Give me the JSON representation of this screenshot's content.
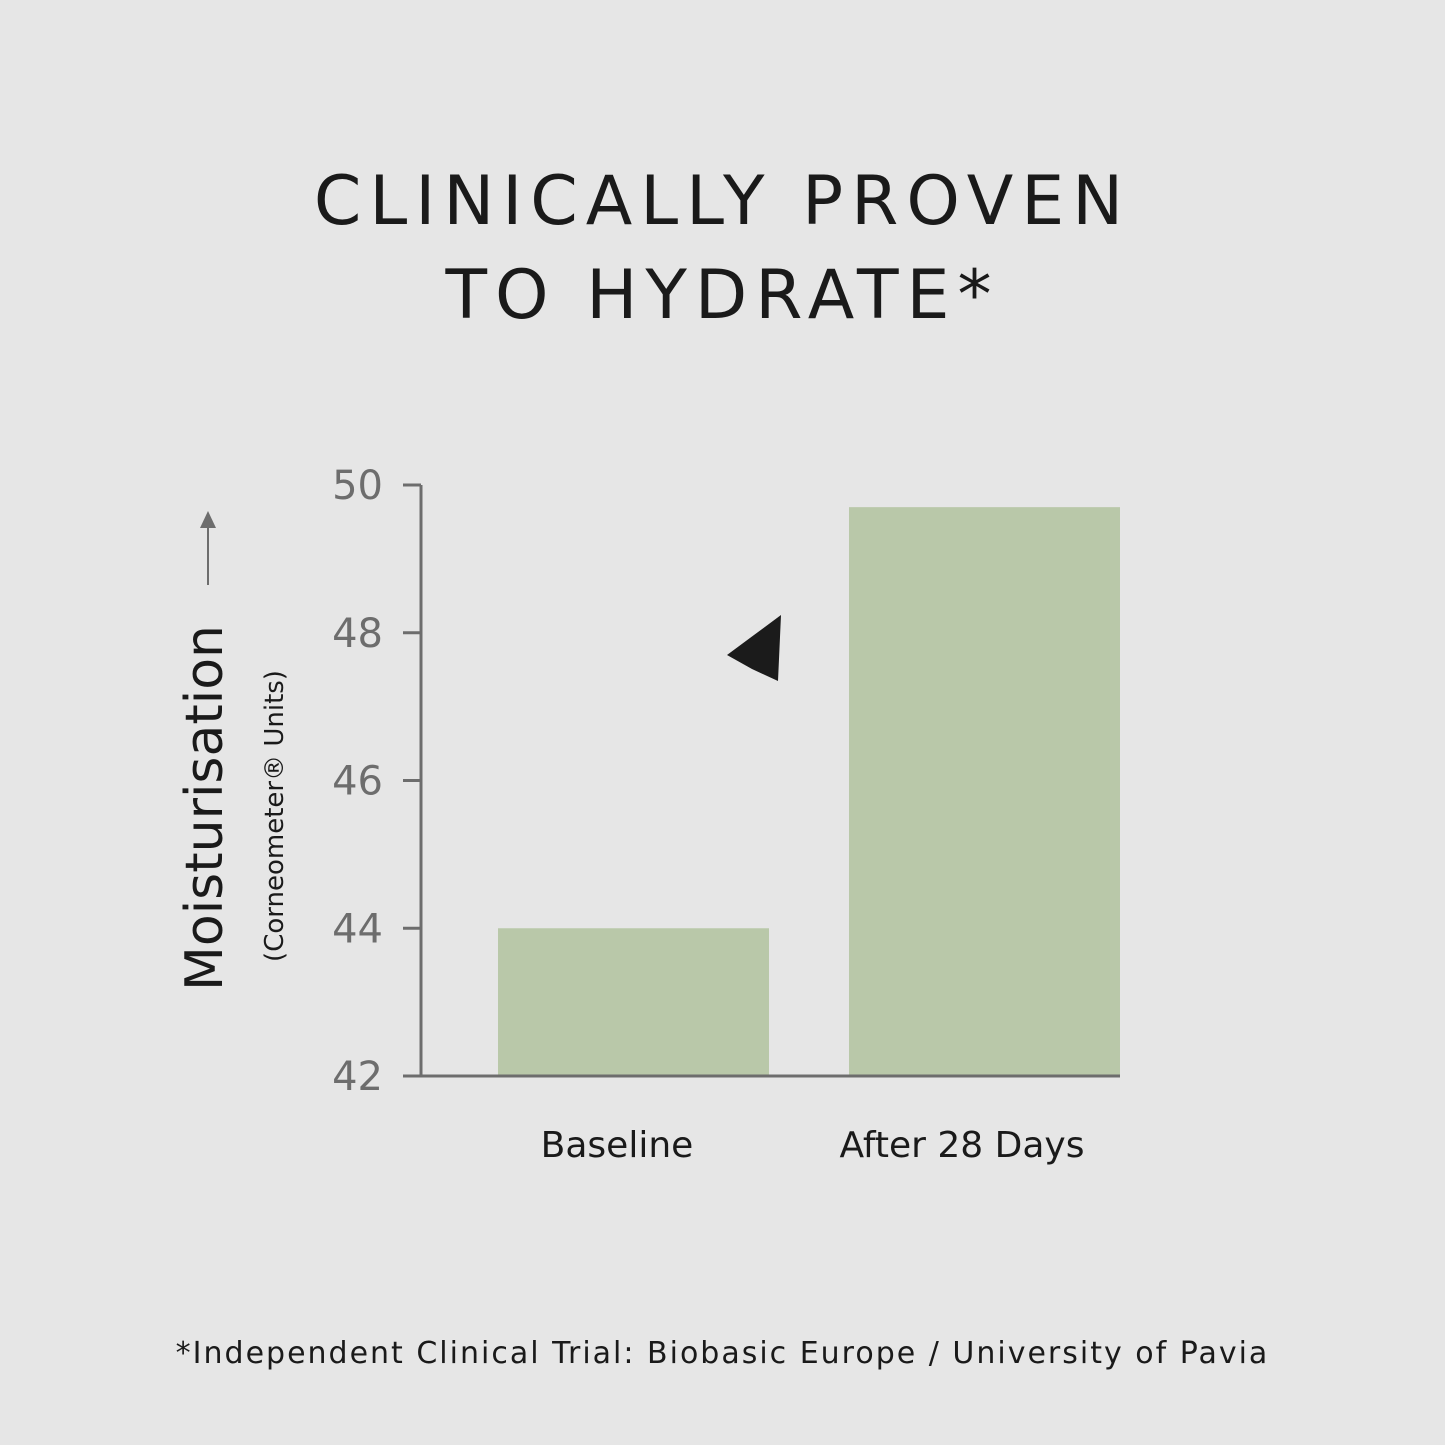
{
  "title_lines": [
    "CLINICALLY PROVEN",
    "TO HYDRATE*"
  ],
  "footnote": "*Independent Clinical Trial: Biobasic Europe / University of Pavia",
  "colors": {
    "background": "#e6e6e6",
    "bar": "#b9c8a9",
    "axis": "#6d6d6d",
    "tick_label": "#6d6d6d",
    "text": "#1a1a1a",
    "arrow": "#1b1b1b"
  },
  "chart_data": {
    "type": "bar",
    "categories": [
      "Baseline",
      "After 28 Days"
    ],
    "values": [
      44.0,
      49.7
    ],
    "ylabel": "Moisturisation",
    "ylabel_sub": "(Corneometer® Units)",
    "ylim": [
      42,
      50
    ],
    "yticks": [
      42,
      44,
      46,
      48,
      50
    ],
    "grid": false,
    "legend": "none",
    "annotation": "upward-trend-arrow"
  }
}
